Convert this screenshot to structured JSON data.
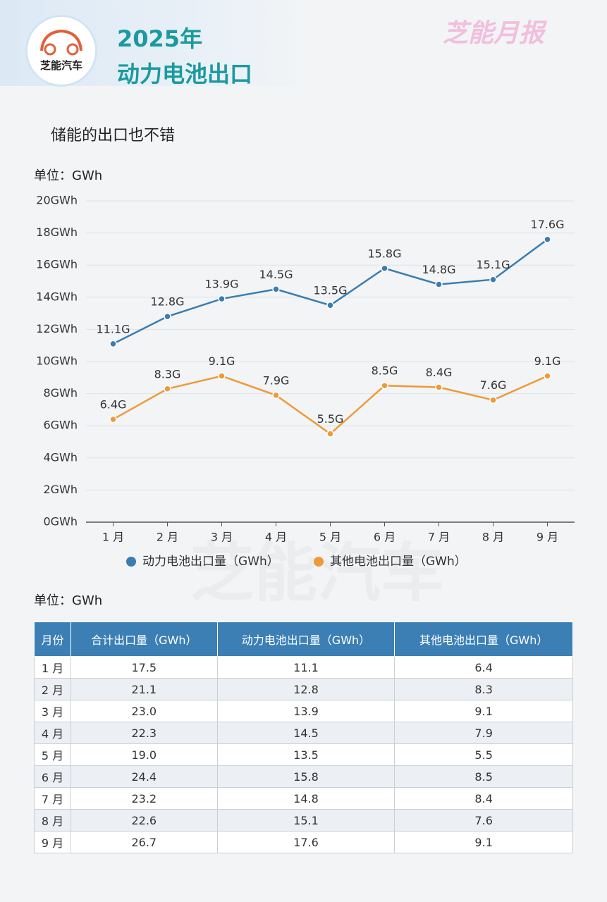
{
  "header": {
    "logo": "芝能汽车",
    "title_line1": "2025年",
    "title_line2": "动力电池出口",
    "brand": "芝能月报",
    "watermark": "芝能汽车"
  },
  "subtitle": "储能的出口也不错",
  "chart_data": {
    "type": "line",
    "unit": "单位：GWh",
    "categories": [
      "1 月",
      "2 月",
      "3 月",
      "4 月",
      "5 月",
      "6 月",
      "7 月",
      "8 月",
      "9 月"
    ],
    "series": [
      {
        "name": "动力电池出口量（GWh）",
        "color": "#3a7db0",
        "values": [
          11.1,
          12.8,
          13.9,
          14.5,
          13.5,
          15.8,
          14.8,
          15.1,
          17.6
        ],
        "value_labels": [
          "11.1G",
          "12.8G",
          "13.9G",
          "14.5G",
          "13.5G",
          "15.8G",
          "14.8G",
          "15.1G",
          "17.6G"
        ]
      },
      {
        "name": "其他电池出口量（GWh）",
        "color": "#ee9a3a",
        "values": [
          6.4,
          8.3,
          9.1,
          7.9,
          5.5,
          8.5,
          8.4,
          7.6,
          9.1
        ],
        "value_labels": [
          "6.4G",
          "8.3G",
          "9.1G",
          "7.9G",
          "5.5G",
          "8.5G",
          "8.4G",
          "7.6G",
          "9.1G"
        ]
      }
    ],
    "ylim": [
      0,
      20
    ],
    "yticks": [
      {
        "value": 0,
        "label": "0GWh"
      },
      {
        "value": 2,
        "label": "2GWh"
      },
      {
        "value": 4,
        "label": "4GWh"
      },
      {
        "value": 6,
        "label": "6GWh"
      },
      {
        "value": 8,
        "label": "8GWh"
      },
      {
        "value": 10,
        "label": "10GWh"
      },
      {
        "value": 12,
        "label": "12GWh"
      },
      {
        "value": 14,
        "label": "14GWh"
      },
      {
        "value": 16,
        "label": "16GWh"
      },
      {
        "value": 18,
        "label": "18GWh"
      },
      {
        "value": 20,
        "label": "20GWh"
      }
    ],
    "grid": true,
    "legend": "bottom"
  },
  "table": {
    "unit": "单位：GWh",
    "header": [
      "月份",
      "合计出口量（GWh）",
      "动力电池出口量（GWh）",
      "其他电池出口量（GWh）"
    ],
    "rows": [
      [
        "1 月",
        "17.5",
        "11.1",
        "6.4"
      ],
      [
        "2 月",
        "21.1",
        "12.8",
        "8.3"
      ],
      [
        "3 月",
        "23.0",
        "13.9",
        "9.1"
      ],
      [
        "4 月",
        "22.3",
        "14.5",
        "7.9"
      ],
      [
        "5 月",
        "19.0",
        "13.5",
        "5.5"
      ],
      [
        "6 月",
        "24.4",
        "15.8",
        "8.5"
      ],
      [
        "7 月",
        "23.2",
        "14.8",
        "8.4"
      ],
      [
        "8 月",
        "22.6",
        "15.1",
        "7.6"
      ],
      [
        "9 月",
        "26.7",
        "17.6",
        "9.1"
      ]
    ]
  }
}
